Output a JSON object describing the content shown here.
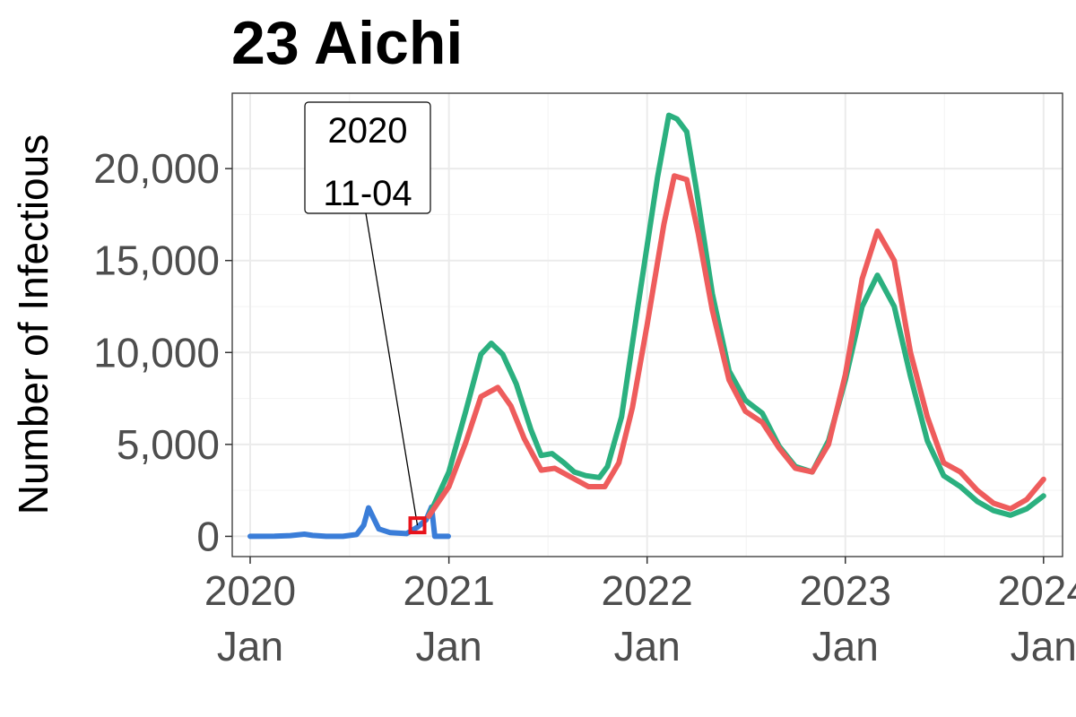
{
  "chart_data": {
    "type": "line",
    "title": "23 Aichi",
    "xlabel": "",
    "ylabel": "Number of Infectious",
    "xlim": [
      "2019-11-29",
      "2024-02-05"
    ],
    "ylim": [
      -1100,
      24100
    ],
    "grid": true,
    "legend": "none",
    "x_ticks": [
      {
        "value": "2020-01-01",
        "line1": "2020",
        "line2": "Jan"
      },
      {
        "value": "2021-01-01",
        "line1": "2021",
        "line2": "Jan"
      },
      {
        "value": "2022-01-01",
        "line1": "2022",
        "line2": "Jan"
      },
      {
        "value": "2023-01-01",
        "line1": "2023",
        "line2": "Jan"
      },
      {
        "value": "2024-01-01",
        "line1": "2024",
        "line2": "Jan"
      }
    ],
    "y_ticks": [
      {
        "value": 0,
        "label": "0"
      },
      {
        "value": 5000,
        "label": "5,000"
      },
      {
        "value": 10000,
        "label": "10,000"
      },
      {
        "value": 15000,
        "label": "15,000"
      },
      {
        "value": 20000,
        "label": "20,000"
      }
    ],
    "series": [
      {
        "color": "#3a7dd8",
        "points": [
          [
            "2020-01-01",
            0
          ],
          [
            "2020-02-15",
            10
          ],
          [
            "2020-03-15",
            40
          ],
          [
            "2020-04-10",
            120
          ],
          [
            "2020-04-25",
            50
          ],
          [
            "2020-05-20",
            0
          ],
          [
            "2020-06-20",
            0
          ],
          [
            "2020-07-15",
            100
          ],
          [
            "2020-07-28",
            600
          ],
          [
            "2020-08-06",
            1550
          ],
          [
            "2020-08-15",
            1000
          ],
          [
            "2020-08-25",
            400
          ],
          [
            "2020-09-15",
            200
          ],
          [
            "2020-10-15",
            150
          ],
          [
            "2020-11-04",
            500
          ],
          [
            "2020-11-20",
            900
          ],
          [
            "2020-11-30",
            1600
          ],
          [
            "2020-12-06",
            0
          ],
          [
            "2020-12-31",
            0
          ]
        ]
      },
      {
        "color": "#2bb07f",
        "points": [
          [
            "2020-11-25",
            1100
          ],
          [
            "2021-01-01",
            3500
          ],
          [
            "2021-02-01",
            6800
          ],
          [
            "2021-03-01",
            9900
          ],
          [
            "2021-03-20",
            10500
          ],
          [
            "2021-04-10",
            9900
          ],
          [
            "2021-05-05",
            8300
          ],
          [
            "2021-06-01",
            5800
          ],
          [
            "2021-06-20",
            4400
          ],
          [
            "2021-07-10",
            4500
          ],
          [
            "2021-08-01",
            4000
          ],
          [
            "2021-08-20",
            3500
          ],
          [
            "2021-09-10",
            3300
          ],
          [
            "2021-10-05",
            3200
          ],
          [
            "2021-10-20",
            3800
          ],
          [
            "2021-11-15",
            6500
          ],
          [
            "2021-12-15",
            12500
          ],
          [
            "2022-01-20",
            19500
          ],
          [
            "2022-02-10",
            22900
          ],
          [
            "2022-02-25",
            22700
          ],
          [
            "2022-03-15",
            22000
          ],
          [
            "2022-04-01",
            19000
          ],
          [
            "2022-05-01",
            13200
          ],
          [
            "2022-06-01",
            9000
          ],
          [
            "2022-07-01",
            7400
          ],
          [
            "2022-08-01",
            6700
          ],
          [
            "2022-09-01",
            4900
          ],
          [
            "2022-10-01",
            3800
          ],
          [
            "2022-11-01",
            3500
          ],
          [
            "2022-12-01",
            5200
          ],
          [
            "2023-01-01",
            8500
          ],
          [
            "2023-02-01",
            12500
          ],
          [
            "2023-03-01",
            14200
          ],
          [
            "2023-04-01",
            12500
          ],
          [
            "2023-05-01",
            8700
          ],
          [
            "2023-06-01",
            5200
          ],
          [
            "2023-07-01",
            3300
          ],
          [
            "2023-08-01",
            2700
          ],
          [
            "2023-09-01",
            1900
          ],
          [
            "2023-10-01",
            1400
          ],
          [
            "2023-11-01",
            1150
          ],
          [
            "2023-12-01",
            1500
          ],
          [
            "2024-01-01",
            2200
          ]
        ]
      },
      {
        "color": "#ee5c5c",
        "points": [
          [
            "2020-11-25",
            1100
          ],
          [
            "2021-01-01",
            2700
          ],
          [
            "2021-02-01",
            5100
          ],
          [
            "2021-03-01",
            7600
          ],
          [
            "2021-04-01",
            8100
          ],
          [
            "2021-04-25",
            7100
          ],
          [
            "2021-05-20",
            5300
          ],
          [
            "2021-06-20",
            3600
          ],
          [
            "2021-07-15",
            3700
          ],
          [
            "2021-08-15",
            3200
          ],
          [
            "2021-09-15",
            2700
          ],
          [
            "2021-10-15",
            2700
          ],
          [
            "2021-11-10",
            4000
          ],
          [
            "2021-12-05",
            7000
          ],
          [
            "2022-01-01",
            11500
          ],
          [
            "2022-02-01",
            17000
          ],
          [
            "2022-02-20",
            19600
          ],
          [
            "2022-03-15",
            19400
          ],
          [
            "2022-04-05",
            16500
          ],
          [
            "2022-05-01",
            12300
          ],
          [
            "2022-06-01",
            8500
          ],
          [
            "2022-07-01",
            6800
          ],
          [
            "2022-08-01",
            6200
          ],
          [
            "2022-09-01",
            4800
          ],
          [
            "2022-10-01",
            3700
          ],
          [
            "2022-11-01",
            3500
          ],
          [
            "2022-12-01",
            5000
          ],
          [
            "2023-01-01",
            8800
          ],
          [
            "2023-02-01",
            14000
          ],
          [
            "2023-03-01",
            16600
          ],
          [
            "2023-04-01",
            15000
          ],
          [
            "2023-05-01",
            10000
          ],
          [
            "2023-06-01",
            6500
          ],
          [
            "2023-07-01",
            4000
          ],
          [
            "2023-08-01",
            3500
          ],
          [
            "2023-09-01",
            2500
          ],
          [
            "2023-10-01",
            1800
          ],
          [
            "2023-11-01",
            1500
          ],
          [
            "2023-12-01",
            2000
          ],
          [
            "2024-01-01",
            3100
          ]
        ]
      }
    ],
    "annotation": {
      "line1": "2020",
      "line2": "11-04",
      "x": "2020-11-04",
      "y": 600,
      "marker_color": "#e8121a"
    }
  }
}
